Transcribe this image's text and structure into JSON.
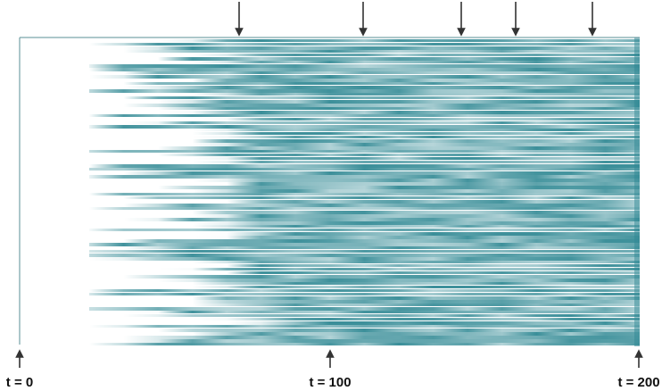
{
  "labels": [
    "t = 0",
    "t = 100",
    "t = 200"
  ]
}
